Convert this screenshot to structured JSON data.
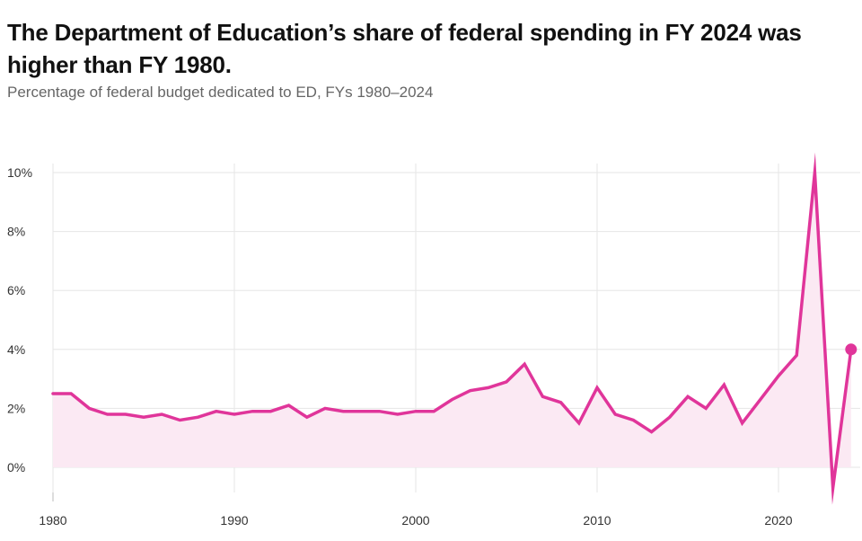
{
  "title": "The Department of Education’s share of federal spending in FY 2024 was higher than FY 1980.",
  "subtitle": "Percentage of federal budget dedicated to ED, FYs 1980–2024",
  "chart_data": {
    "type": "area",
    "title": "The Department of Education’s share of federal spending in FY 2024 was higher than FY 1980.",
    "subtitle": "Percentage of federal budget dedicated to ED, FYs 1980–2024",
    "xlabel": "",
    "ylabel": "",
    "x": [
      1980,
      1981,
      1982,
      1983,
      1984,
      1985,
      1986,
      1987,
      1988,
      1989,
      1990,
      1991,
      1992,
      1993,
      1994,
      1995,
      1996,
      1997,
      1998,
      1999,
      2000,
      2001,
      2002,
      2003,
      2004,
      2005,
      2006,
      2007,
      2008,
      2009,
      2010,
      2011,
      2012,
      2013,
      2014,
      2015,
      2016,
      2017,
      2018,
      2019,
      2020,
      2021,
      2022,
      2023,
      2024
    ],
    "series": [
      {
        "values": [
          2.5,
          2.5,
          2.0,
          1.8,
          1.8,
          1.7,
          1.8,
          1.6,
          1.7,
          1.9,
          1.8,
          1.9,
          1.9,
          2.1,
          1.7,
          2.0,
          1.9,
          1.9,
          1.9,
          1.8,
          1.9,
          1.9,
          2.3,
          2.6,
          2.7,
          2.9,
          3.5,
          2.4,
          2.2,
          1.5,
          2.7,
          1.8,
          1.6,
          1.2,
          1.7,
          2.4,
          2.0,
          2.8,
          1.5,
          2.3,
          3.1,
          3.8,
          10.0,
          -0.7,
          4.0
        ],
        "color": "#e0359a"
      }
    ],
    "x_ticks": [
      "1980",
      "1990",
      "2000",
      "2010",
      "2020"
    ],
    "y_ticks": [
      "0%",
      "2%",
      "4%",
      "6%",
      "8%",
      "10%"
    ],
    "xlim": [
      1980,
      2025
    ],
    "ylim": [
      -0.8,
      10
    ],
    "grid": true,
    "legend": "none",
    "fill_color": "#fbe9f3",
    "grid_color": "#e6e6e6"
  }
}
